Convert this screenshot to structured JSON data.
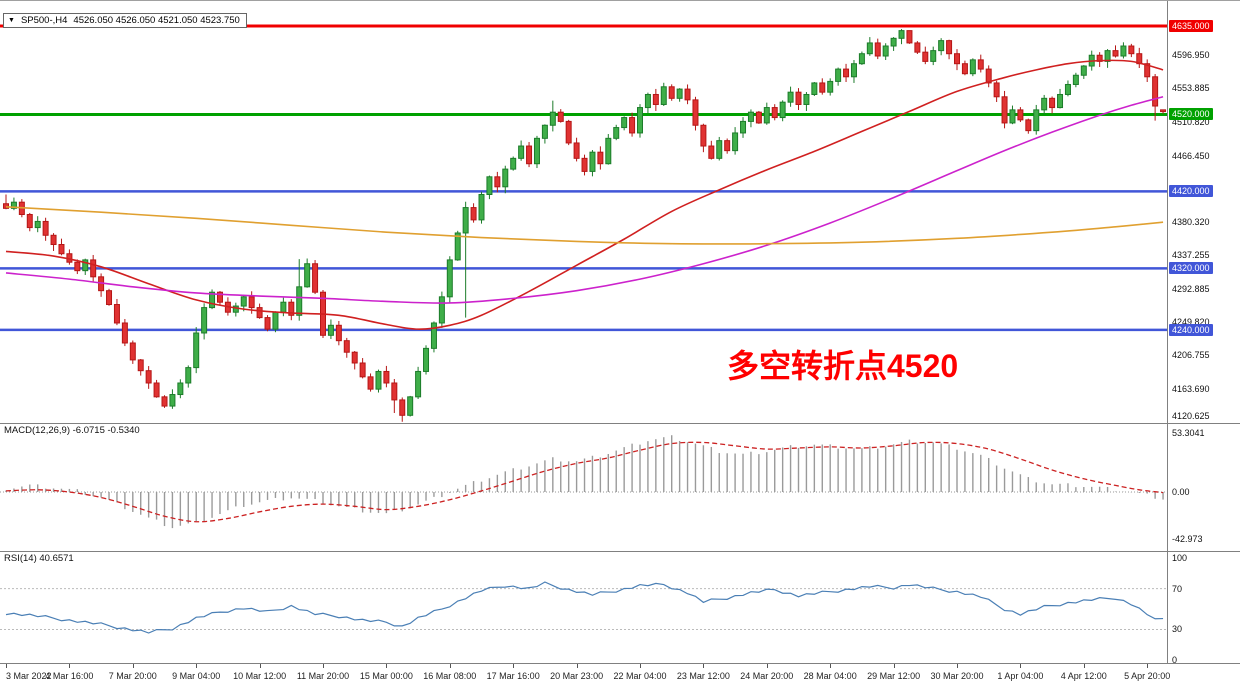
{
  "header": {
    "symbol_period": "SP500-,H4",
    "ohlc_text": "4526.050 4526.050 4521.050 4523.750"
  },
  "icons": {
    "symbol_dropdown": "▼"
  },
  "indicators": {
    "macd_label": "MACD(12,26,9) -6.0715 -0.5340",
    "rsi_label": "RSI(14) 40.6571"
  },
  "annotation": {
    "text": "多空转折点4520",
    "color": "#ff0000"
  },
  "colors": {
    "background": "#ffffff",
    "up_fill": "#3fae49",
    "up_stroke": "#1c7c2a",
    "down_fill": "#e03232",
    "down_stroke": "#b51616",
    "ma_fast": "#d02020",
    "ma_mid": "#cc22cc",
    "ma_slow": "#e0a030",
    "level_red": "#f00000",
    "level_green": "#00a100",
    "level_blue": "#4156d8",
    "macd_hist": "#9a9a9a",
    "macd_signal": "#cc2222",
    "rsi_line": "#4a7fb5",
    "panel_border": "#808080",
    "axis_text": "#111111"
  },
  "axis": {
    "price_labels": [
      "4596.950",
      "4553.885",
      "4510.820",
      "4466.450",
      "4380.320",
      "4337.255",
      "4292.885",
      "4249.820",
      "4206.755",
      "4163.690",
      "4120.625"
    ],
    "macd_labels": [
      {
        "value": 53.3041,
        "label": "53.3041"
      },
      {
        "value": 0,
        "label": "0.00"
      },
      {
        "value": -42.973,
        "label": "-42.973"
      }
    ],
    "rsi_labels": [
      {
        "value": 100,
        "label": "100"
      },
      {
        "value": 70,
        "label": "70"
      },
      {
        "value": 30,
        "label": "30"
      },
      {
        "value": 0,
        "label": "0"
      }
    ],
    "time_labels": [
      {
        "bar": 0,
        "label": "3 Mar 2022"
      },
      {
        "bar": 8,
        "label": "4 Mar 16:00"
      },
      {
        "bar": 16,
        "label": "7 Mar 20:00"
      },
      {
        "bar": 24,
        "label": "9 Mar 04:00"
      },
      {
        "bar": 32,
        "label": "10 Mar 12:00"
      },
      {
        "bar": 40,
        "label": "11 Mar 20:00"
      },
      {
        "bar": 48,
        "label": "15 Mar 00:00"
      },
      {
        "bar": 56,
        "label": "16 Mar 08:00"
      },
      {
        "bar": 64,
        "label": "17 Mar 16:00"
      },
      {
        "bar": 72,
        "label": "20 Mar 23:00"
      },
      {
        "bar": 80,
        "label": "22 Mar 04:00"
      },
      {
        "bar": 88,
        "label": "23 Mar 12:00"
      },
      {
        "bar": 96,
        "label": "24 Mar 20:00"
      },
      {
        "bar": 104,
        "label": "28 Mar 04:00"
      },
      {
        "bar": 112,
        "label": "29 Mar 12:00"
      },
      {
        "bar": 120,
        "label": "30 Mar 20:00"
      },
      {
        "bar": 128,
        "label": "1 Apr 04:00"
      },
      {
        "bar": 136,
        "label": "4 Apr 12:00"
      },
      {
        "bar": 144,
        "label": "5 Apr 20:00"
      }
    ]
  },
  "chart_data": [
    {
      "type": "candlestick",
      "title": "SP500-,H4",
      "x_unit": "H4 bars, 3 Mar 2022 - 5 Apr 2022",
      "ylim": [
        4119.0,
        4667.5
      ],
      "closes": [
        4398,
        4406,
        4390,
        4373,
        4381,
        4363,
        4351,
        4339,
        4328,
        4317,
        4331,
        4309,
        4291,
        4273,
        4249,
        4223,
        4201,
        4187,
        4171,
        4153,
        4141,
        4156,
        4171,
        4191,
        4236,
        4269,
        4289,
        4276,
        4263,
        4271,
        4283,
        4269,
        4256,
        4241,
        4263,
        4276,
        4259,
        4296,
        4326,
        4289,
        4233,
        4246,
        4226,
        4211,
        4197,
        4179,
        4163,
        4186,
        4171,
        4149,
        4129,
        4153,
        4186,
        4216,
        4249,
        4283,
        4331,
        4366,
        4399,
        4383,
        4416,
        4439,
        4426,
        4449,
        4463,
        4479,
        4456,
        4489,
        4506,
        4523,
        4511,
        4483,
        4463,
        4446,
        4471,
        4456,
        4489,
        4503,
        4516,
        4496,
        4529,
        4546,
        4533,
        4556,
        4541,
        4553,
        4539,
        4506,
        4479,
        4463,
        4486,
        4473,
        4496,
        4511,
        4523,
        4509,
        4529,
        4516,
        4536,
        4549,
        4533,
        4546,
        4561,
        4549,
        4563,
        4579,
        4569,
        4586,
        4599,
        4613,
        4596,
        4609,
        4619,
        4629,
        4613,
        4601,
        4589,
        4603,
        4616,
        4599,
        4586,
        4573,
        4591,
        4579,
        4561,
        4543,
        4509,
        4526,
        4513,
        4499,
        4526,
        4541,
        4529,
        4546,
        4559,
        4571,
        4583,
        4597,
        4589,
        4603,
        4596,
        4609,
        4599,
        4586,
        4569,
        4531,
        4523.75
      ],
      "current_bar": {
        "open": 4526.05,
        "high": 4526.05,
        "low": 4521.05,
        "close": 4523.75
      },
      "wick_overrides": {
        "0": {
          "high": 4416
        },
        "37": {
          "high": 4332,
          "low": 4252
        },
        "49": {
          "low": 4132
        },
        "50": {
          "low": 4120.6
        },
        "58": {
          "low": 4256
        },
        "69": {
          "high": 4538
        },
        "113": {
          "high": 4631
        },
        "114": {
          "high": 4627
        },
        "126": {
          "low": 4502
        },
        "145": {
          "low": 4512
        }
      },
      "levels": [
        {
          "price": 4635,
          "label": "4635.000",
          "color": "#f00000",
          "width": 3
        },
        {
          "price": 4520,
          "label": "4520.000",
          "color": "#00a100",
          "width": 3
        },
        {
          "price": 4420,
          "label": "4420.000",
          "color": "#4156d8",
          "width": 2.5
        },
        {
          "price": 4320,
          "label": "4320.000",
          "color": "#4156d8",
          "width": 2.5
        },
        {
          "price": 4240,
          "label": "4240.000",
          "color": "#4156d8",
          "width": 2.5
        }
      ],
      "moving_averages": [
        {
          "name": "fast-red",
          "color": "#d02020",
          "points": [
            [
              0,
              4342
            ],
            [
              6,
              4336
            ],
            [
              12,
              4322
            ],
            [
              18,
              4300
            ],
            [
              24,
              4279
            ],
            [
              30,
              4267
            ],
            [
              36,
              4262
            ],
            [
              42,
              4259
            ],
            [
              48,
              4247
            ],
            [
              52,
              4241
            ],
            [
              56,
              4246
            ],
            [
              60,
              4259
            ],
            [
              66,
              4290
            ],
            [
              72,
              4324
            ],
            [
              78,
              4358
            ],
            [
              84,
              4394
            ],
            [
              90,
              4422
            ],
            [
              96,
              4448
            ],
            [
              102,
              4472
            ],
            [
              108,
              4498
            ],
            [
              114,
              4524
            ],
            [
              120,
              4550
            ],
            [
              126,
              4568
            ],
            [
              130,
              4578
            ],
            [
              134,
              4586
            ],
            [
              138,
              4590
            ],
            [
              142,
              4589
            ],
            [
              146,
              4578
            ]
          ]
        },
        {
          "name": "mid-magenta",
          "color": "#cc22cc",
          "points": [
            [
              0,
              4314
            ],
            [
              8,
              4306
            ],
            [
              16,
              4296
            ],
            [
              24,
              4288
            ],
            [
              32,
              4284
            ],
            [
              40,
              4281
            ],
            [
              48,
              4277
            ],
            [
              56,
              4275
            ],
            [
              64,
              4281
            ],
            [
              72,
              4291
            ],
            [
              80,
              4306
            ],
            [
              88,
              4326
            ],
            [
              96,
              4350
            ],
            [
              104,
              4379
            ],
            [
              112,
              4412
            ],
            [
              120,
              4447
            ],
            [
              126,
              4473
            ],
            [
              132,
              4497
            ],
            [
              138,
              4519
            ],
            [
              142,
              4532
            ],
            [
              146,
              4543
            ]
          ]
        },
        {
          "name": "slow-orange",
          "color": "#e0a030",
          "points": [
            [
              0,
              4400
            ],
            [
              12,
              4393
            ],
            [
              24,
              4385
            ],
            [
              36,
              4376
            ],
            [
              48,
              4367
            ],
            [
              60,
              4360
            ],
            [
              72,
              4355
            ],
            [
              84,
              4352
            ],
            [
              96,
              4352
            ],
            [
              108,
              4354
            ],
            [
              120,
              4359
            ],
            [
              132,
              4367
            ],
            [
              140,
              4374
            ],
            [
              146,
              4380
            ]
          ]
        }
      ]
    },
    {
      "type": "bar",
      "name": "MACD(12,26,9)",
      "main_value": -6.0715,
      "signal_value": -0.534,
      "ylim": [
        -53.6,
        62.7
      ],
      "histogram_points": [
        [
          0,
          3
        ],
        [
          3,
          6
        ],
        [
          6,
          4
        ],
        [
          9,
          1
        ],
        [
          12,
          -5
        ],
        [
          15,
          -14
        ],
        [
          18,
          -24
        ],
        [
          21,
          -32
        ],
        [
          24,
          -28
        ],
        [
          27,
          -20
        ],
        [
          30,
          -12
        ],
        [
          33,
          -8
        ],
        [
          36,
          -5
        ],
        [
          39,
          -8
        ],
        [
          42,
          -13
        ],
        [
          45,
          -17
        ],
        [
          48,
          -20
        ],
        [
          51,
          -14
        ],
        [
          54,
          -6
        ],
        [
          57,
          3
        ],
        [
          60,
          11
        ],
        [
          63,
          18
        ],
        [
          66,
          24
        ],
        [
          69,
          30
        ],
        [
          72,
          28
        ],
        [
          75,
          33
        ],
        [
          78,
          40
        ],
        [
          81,
          47
        ],
        [
          84,
          50
        ],
        [
          87,
          44
        ],
        [
          90,
          37
        ],
        [
          93,
          34
        ],
        [
          96,
          37
        ],
        [
          99,
          41
        ],
        [
          102,
          43
        ],
        [
          105,
          41
        ],
        [
          108,
          39
        ],
        [
          111,
          42
        ],
        [
          114,
          46
        ],
        [
          117,
          45
        ],
        [
          120,
          40
        ],
        [
          123,
          33
        ],
        [
          126,
          22
        ],
        [
          129,
          12
        ],
        [
          132,
          7
        ],
        [
          135,
          6
        ],
        [
          138,
          4
        ],
        [
          141,
          1
        ],
        [
          144,
          -3
        ],
        [
          146,
          -6.07
        ]
      ],
      "signal_points": [
        [
          0,
          1
        ],
        [
          4,
          2
        ],
        [
          8,
          0
        ],
        [
          12,
          -5
        ],
        [
          16,
          -13
        ],
        [
          20,
          -22
        ],
        [
          24,
          -27
        ],
        [
          28,
          -24
        ],
        [
          32,
          -18
        ],
        [
          36,
          -13
        ],
        [
          40,
          -11
        ],
        [
          44,
          -13
        ],
        [
          48,
          -16
        ],
        [
          52,
          -13
        ],
        [
          56,
          -7
        ],
        [
          60,
          1
        ],
        [
          64,
          10
        ],
        [
          68,
          19
        ],
        [
          72,
          26
        ],
        [
          76,
          31
        ],
        [
          80,
          38
        ],
        [
          84,
          44
        ],
        [
          88,
          45
        ],
        [
          92,
          42
        ],
        [
          96,
          39
        ],
        [
          100,
          40
        ],
        [
          104,
          41
        ],
        [
          108,
          40
        ],
        [
          112,
          42
        ],
        [
          116,
          45
        ],
        [
          120,
          44
        ],
        [
          124,
          39
        ],
        [
          128,
          30
        ],
        [
          132,
          20
        ],
        [
          136,
          12
        ],
        [
          140,
          6
        ],
        [
          143,
          2
        ],
        [
          146,
          -0.53
        ]
      ]
    },
    {
      "type": "line",
      "name": "RSI(14)",
      "value": 40.6571,
      "levels": [
        70,
        30
      ],
      "ylim": [
        -2.9,
        106.9
      ],
      "points": [
        [
          0,
          46
        ],
        [
          3,
          44
        ],
        [
          6,
          41
        ],
        [
          9,
          38
        ],
        [
          12,
          35
        ],
        [
          15,
          31
        ],
        [
          18,
          27
        ],
        [
          21,
          31
        ],
        [
          24,
          41
        ],
        [
          27,
          47
        ],
        [
          30,
          51
        ],
        [
          33,
          47
        ],
        [
          36,
          53
        ],
        [
          39,
          45
        ],
        [
          42,
          43
        ],
        [
          45,
          39
        ],
        [
          48,
          37
        ],
        [
          50,
          33
        ],
        [
          52,
          41
        ],
        [
          55,
          50
        ],
        [
          58,
          61
        ],
        [
          60,
          68
        ],
        [
          63,
          73
        ],
        [
          66,
          70
        ],
        [
          68,
          75
        ],
        [
          71,
          69
        ],
        [
          74,
          64
        ],
        [
          77,
          68
        ],
        [
          80,
          73
        ],
        [
          83,
          74
        ],
        [
          86,
          66
        ],
        [
          88,
          57
        ],
        [
          91,
          61
        ],
        [
          94,
          66
        ],
        [
          97,
          69
        ],
        [
          100,
          63
        ],
        [
          103,
          66
        ],
        [
          106,
          69
        ],
        [
          109,
          72
        ],
        [
          112,
          71
        ],
        [
          114,
          74
        ],
        [
          117,
          70
        ],
        [
          120,
          67
        ],
        [
          123,
          62
        ],
        [
          126,
          50
        ],
        [
          128,
          45
        ],
        [
          131,
          52
        ],
        [
          134,
          56
        ],
        [
          137,
          59
        ],
        [
          140,
          61
        ],
        [
          142,
          55
        ],
        [
          144,
          45
        ],
        [
          145,
          39
        ],
        [
          146,
          40.66
        ]
      ]
    }
  ]
}
